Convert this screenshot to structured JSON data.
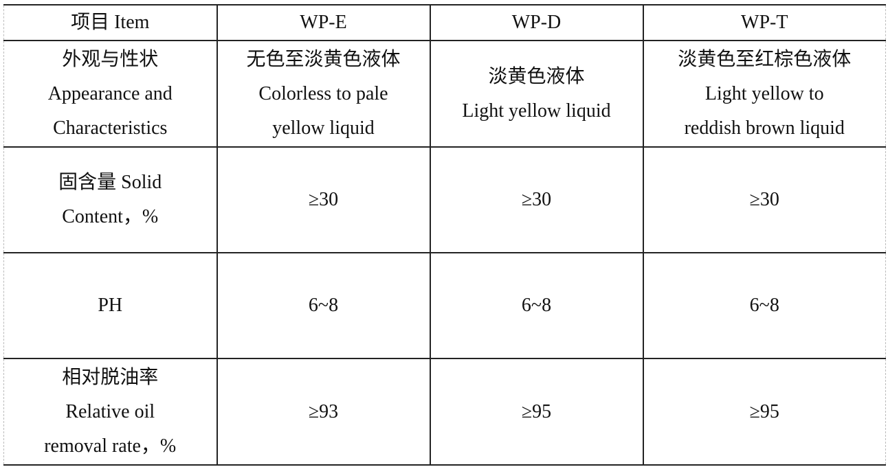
{
  "table": {
    "header": [
      "项目 Item",
      "WP-E",
      "WP-D",
      "WP-T"
    ],
    "rows": [
      {
        "item": [
          "外观与性状",
          "Appearance and",
          "Characteristics"
        ],
        "values": [
          [
            "无色至淡黄色液体",
            "Colorless to pale",
            "yellow liquid"
          ],
          [
            "淡黄色液体",
            "Light yellow liquid"
          ],
          [
            "淡黄色至红棕色液体",
            "Light yellow to",
            "reddish brown liquid"
          ]
        ]
      },
      {
        "item": [
          "固含量 Solid",
          "Content，%"
        ],
        "values": [
          [
            "≥30"
          ],
          [
            "≥30"
          ],
          [
            "≥30"
          ]
        ]
      },
      {
        "item": [
          "PH"
        ],
        "values": [
          [
            "6~8"
          ],
          [
            "6~8"
          ],
          [
            "6~8"
          ]
        ]
      },
      {
        "item": [
          "相对脱油率",
          "Relative oil",
          "removal rate，%"
        ],
        "values": [
          [
            "≥93"
          ],
          [
            "≥95"
          ],
          [
            "≥95"
          ]
        ]
      }
    ]
  }
}
